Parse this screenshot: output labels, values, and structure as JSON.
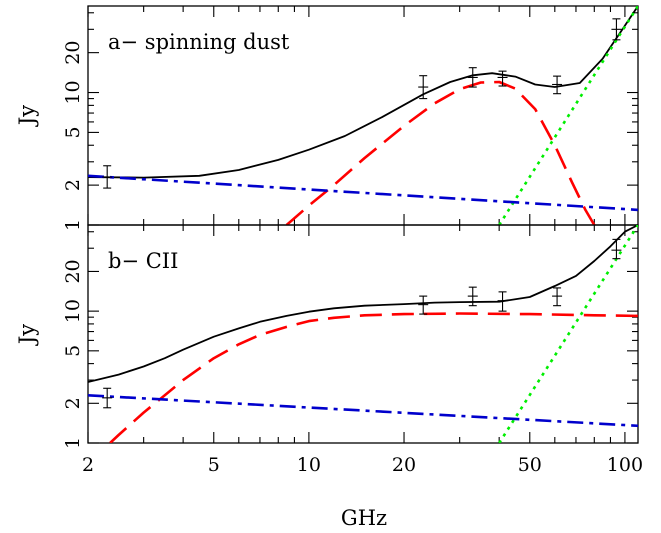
{
  "chart_data": [
    {
      "type": "line",
      "title": "a− spinning dust",
      "xlabel": "GHz",
      "ylabel": "Jy",
      "xscale": "log",
      "yscale": "log",
      "xlim": [
        2,
        110
      ],
      "ylim": [
        1,
        45
      ],
      "xticks": [
        2,
        5,
        10,
        20,
        50,
        100
      ],
      "xtick_labels": [
        "2",
        "5",
        "10",
        "20",
        "50",
        "100"
      ],
      "yticks": [
        1,
        2,
        5,
        10,
        20
      ],
      "ytick_labels": [
        "1",
        "2",
        "5",
        "10",
        "20"
      ],
      "series": [
        {
          "style": "solid",
          "color": "#000000",
          "x": [
            2.0,
            3.0,
            4.5,
            6.0,
            8.0,
            10.0,
            13.0,
            17.0,
            23.0,
            28.0,
            33.0,
            38.0,
            45.0,
            52.0,
            60.0,
            72.0,
            85.0,
            100.0,
            110.0
          ],
          "y": [
            2.3,
            2.28,
            2.35,
            2.6,
            3.1,
            3.7,
            4.7,
            6.5,
            9.7,
            12.0,
            13.5,
            14.0,
            13.2,
            11.5,
            11.0,
            11.8,
            18.0,
            32.0,
            45.0
          ]
        },
        {
          "style": "dashed",
          "color": "#ff0000",
          "x": [
            8.5,
            10.0,
            12.0,
            15.0,
            20.0,
            25.0,
            30.0,
            35.0,
            40.0,
            45.0,
            52.0,
            60.0,
            68.0,
            75.0,
            80.0,
            84.0
          ],
          "y": [
            1.0,
            1.4,
            2.0,
            3.2,
            5.6,
            8.3,
            10.6,
            11.9,
            12.0,
            10.7,
            7.5,
            4.0,
            2.1,
            1.3,
            1.0,
            0.8
          ]
        },
        {
          "style": "dotted",
          "color": "#00ee00",
          "x": [
            40.0,
            110.0
          ],
          "y": [
            1.0,
            45.0
          ]
        },
        {
          "style": "dashdot",
          "color": "#0000cc",
          "x": [
            2.0,
            110.0
          ],
          "y": [
            2.35,
            1.3
          ]
        }
      ],
      "points": [
        {
          "x": 2.3,
          "y": 2.3,
          "ylo": 1.9,
          "yhi": 2.8
        },
        {
          "x": 23.0,
          "y": 11.0,
          "ylo": 9.0,
          "yhi": 13.4
        },
        {
          "x": 33.0,
          "y": 13.0,
          "ylo": 11.0,
          "yhi": 15.4
        },
        {
          "x": 41.0,
          "y": 13.0,
          "ylo": 11.2,
          "yhi": 14.5
        },
        {
          "x": 61.0,
          "y": 11.5,
          "ylo": 9.8,
          "yhi": 13.3
        },
        {
          "x": 94.0,
          "y": 30.0,
          "ylo": 25.0,
          "yhi": 36.0
        }
      ]
    },
    {
      "type": "line",
      "title": "b− CII",
      "xlabel": "GHz",
      "ylabel": "Jy",
      "xscale": "log",
      "yscale": "log",
      "xlim": [
        2,
        110
      ],
      "ylim": [
        1,
        45
      ],
      "xticks": [
        2,
        5,
        10,
        20,
        50,
        100
      ],
      "xtick_labels": [
        "2",
        "5",
        "10",
        "20",
        "50",
        "100"
      ],
      "yticks": [
        1,
        2,
        5,
        10,
        20
      ],
      "ytick_labels": [
        "1",
        "2",
        "5",
        "10",
        "20"
      ],
      "series": [
        {
          "style": "solid",
          "color": "#000000",
          "x": [
            2.0,
            2.5,
            3.0,
            3.5,
            4.0,
            5.0,
            6.0,
            7.0,
            8.5,
            10.0,
            12.0,
            15.0,
            20.0,
            25.0,
            30.0,
            40.0,
            50.0,
            60.0,
            70.0,
            80.0,
            90.0,
            100.0,
            110.0
          ],
          "y": [
            2.9,
            3.3,
            3.8,
            4.4,
            5.1,
            6.4,
            7.4,
            8.3,
            9.2,
            9.9,
            10.5,
            11.0,
            11.3,
            11.6,
            11.7,
            11.8,
            12.8,
            15.5,
            18.5,
            24.0,
            31.0,
            40.0,
            45.0
          ]
        },
        {
          "style": "dashed",
          "color": "#ff0000",
          "x": [
            2.35,
            2.5,
            3.0,
            3.5,
            4.0,
            5.0,
            6.0,
            7.0,
            8.5,
            10.0,
            12.0,
            15.0,
            20.0,
            30.0,
            50.0,
            80.0,
            110.0
          ],
          "y": [
            1.0,
            1.15,
            1.7,
            2.3,
            3.0,
            4.4,
            5.6,
            6.6,
            7.6,
            8.4,
            8.9,
            9.3,
            9.5,
            9.6,
            9.5,
            9.3,
            9.2
          ]
        },
        {
          "style": "dotted",
          "color": "#00ee00",
          "x": [
            40.0,
            110.0
          ],
          "y": [
            1.0,
            45.0
          ]
        },
        {
          "style": "dashdot",
          "color": "#0000cc",
          "x": [
            2.0,
            110.0
          ],
          "y": [
            2.3,
            1.35
          ]
        }
      ],
      "points": [
        {
          "x": 2.3,
          "y": 2.2,
          "ylo": 1.85,
          "yhi": 2.6
        },
        {
          "x": 23.0,
          "y": 11.2,
          "ylo": 9.5,
          "yhi": 13.0
        },
        {
          "x": 33.0,
          "y": 13.0,
          "ylo": 11.0,
          "yhi": 15.2
        },
        {
          "x": 41.0,
          "y": 12.0,
          "ylo": 10.0,
          "yhi": 14.0
        },
        {
          "x": 61.0,
          "y": 13.0,
          "ylo": 11.0,
          "yhi": 15.0
        },
        {
          "x": 94.0,
          "y": 29.0,
          "ylo": 25.0,
          "yhi": 35.0
        }
      ]
    }
  ]
}
